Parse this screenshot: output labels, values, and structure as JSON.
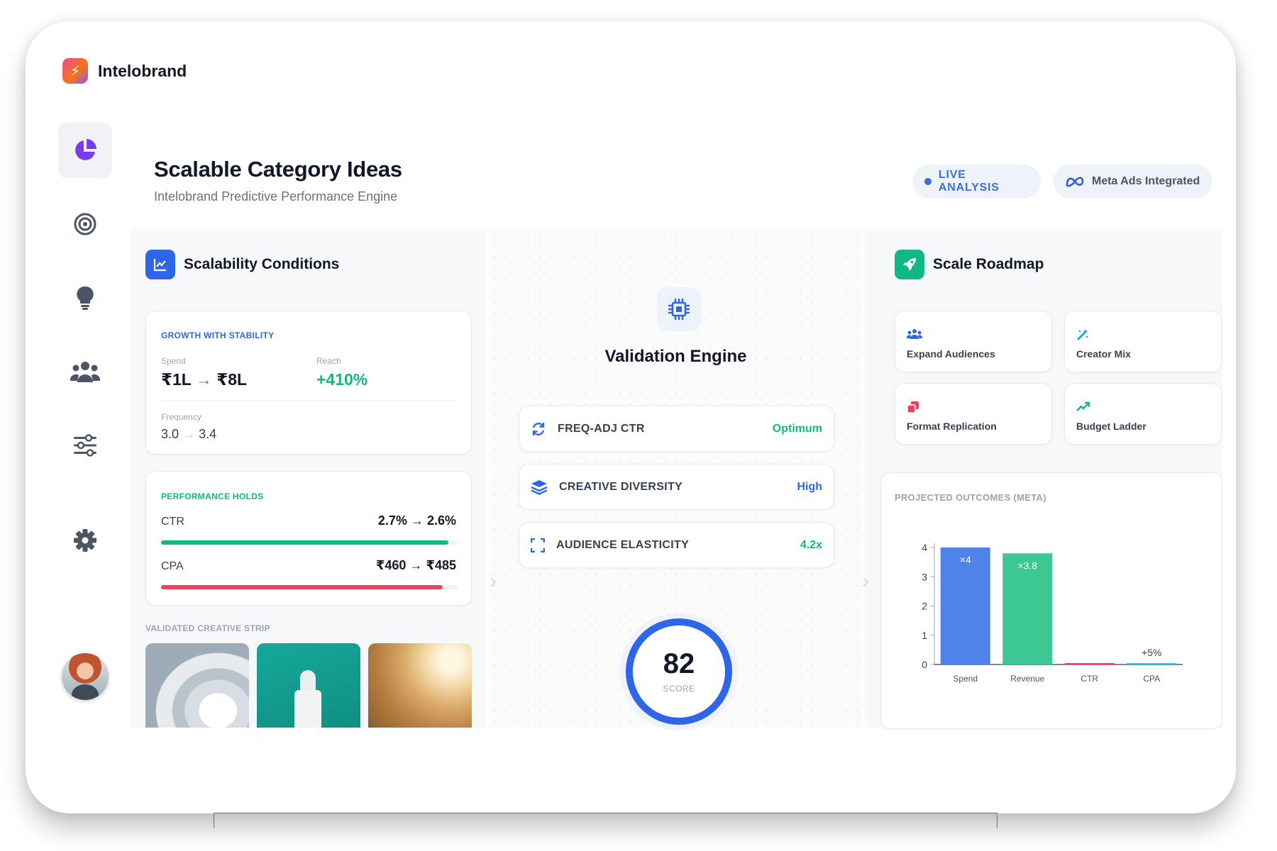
{
  "app": {
    "name": "Intelobrand"
  },
  "sidebar": {
    "items": [
      {
        "name": "dashboard",
        "icon": "pie-chart-icon",
        "active": true
      },
      {
        "name": "targets",
        "icon": "target-icon",
        "active": false
      },
      {
        "name": "ideas",
        "icon": "lightbulb-icon",
        "active": false
      },
      {
        "name": "audiences",
        "icon": "users-icon",
        "active": false
      },
      {
        "name": "controls",
        "icon": "sliders-icon",
        "active": false
      },
      {
        "name": "settings",
        "icon": "gear-icon",
        "active": false
      }
    ]
  },
  "header": {
    "title": "Scalable Category Ideas",
    "subtitle": "Intelobrand Predictive Performance Engine",
    "live_badge": "LIVE ANALYSIS",
    "meta_badge": "Meta Ads Integrated"
  },
  "scalability": {
    "title": "Scalability Conditions",
    "growth": {
      "label": "GROWTH WITH STABILITY",
      "spend_label": "Spend",
      "spend_from": "₹1L",
      "spend_to": "₹8L",
      "reach_label": "Reach",
      "reach_value": "+410%",
      "frequency_label": "Frequency",
      "frequency_from": "3.0",
      "frequency_to": "3.4"
    },
    "performance": {
      "label": "PERFORMANCE HOLDS",
      "ctr_label": "CTR",
      "ctr_from": "2.7%",
      "ctr_to": "2.6%",
      "ctr_bar": 0.97,
      "cpa_label": "CPA",
      "cpa_from": "₹460",
      "cpa_to": "₹485",
      "cpa_bar": 0.95
    },
    "strip_title": "VALIDATED CREATIVE STRIP"
  },
  "engine": {
    "title": "Validation Engine",
    "metrics": [
      {
        "label": "FREQ-ADJ CTR",
        "value": "Optimum",
        "icon": "refresh-icon",
        "color": "#10b981"
      },
      {
        "label": "CREATIVE DIVERSITY",
        "value": "High",
        "icon": "layers-icon",
        "color": "#2f66e8"
      },
      {
        "label": "AUDIENCE ELASTICITY",
        "value": "4.2x",
        "icon": "expand-icon",
        "color": "#10b981"
      }
    ],
    "score": "82",
    "score_label": "SCORE"
  },
  "roadmap": {
    "title": "Scale Roadmap",
    "items": [
      {
        "label": "Expand Audiences",
        "icon": "users-icon"
      },
      {
        "label": "Creator Mix",
        "icon": "magic-wand-icon"
      },
      {
        "label": "Format Replication",
        "icon": "copy-icon"
      },
      {
        "label": "Budget Ladder",
        "icon": "trend-up-icon"
      }
    ]
  },
  "chart_data": {
    "type": "bar",
    "title": "PROJECTED OUTCOMES (META)",
    "categories": [
      "Spend",
      "Revenue",
      "CTR",
      "CPA"
    ],
    "values": [
      4,
      3.8,
      0,
      0.05
    ],
    "data_labels": [
      "×4",
      "×3.8",
      "",
      "+5%"
    ],
    "bar_colors": [
      "#4f83ea",
      "#3cc795",
      "#e8455a",
      "#3fc1e8"
    ],
    "ylim": [
      0,
      4
    ],
    "yticks": [
      "0",
      "1",
      "2",
      "3",
      "4"
    ],
    "grid": false,
    "legend": "none"
  }
}
